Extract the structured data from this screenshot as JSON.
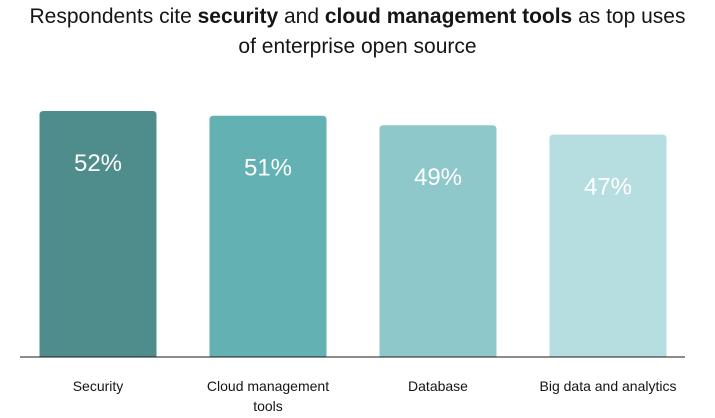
{
  "title": {
    "parts": [
      {
        "text": "Respondents cite ",
        "bold": false
      },
      {
        "text": "security",
        "bold": true
      },
      {
        "text": " and ",
        "bold": false
      },
      {
        "text": "cloud management tools",
        "bold": true
      },
      {
        "text": " as top uses",
        "bold": false
      },
      {
        "text": "\n",
        "bold": false
      },
      {
        "text": "of enterprise open source",
        "bold": false
      }
    ]
  },
  "chart_data": {
    "type": "bar",
    "title": "Respondents cite security and cloud management tools as top uses of enterprise open source",
    "categories": [
      "Security",
      "Cloud management tools",
      "Database",
      "Big data and analytics"
    ],
    "category_lines": [
      [
        "Security"
      ],
      [
        "Cloud management",
        "tools"
      ],
      [
        "Database"
      ],
      [
        "Big data and analytics"
      ]
    ],
    "values": [
      52,
      51,
      49,
      47
    ],
    "value_labels": [
      "52%",
      "51%",
      "49%",
      "47%"
    ],
    "colors": [
      "#4f8d8c",
      "#63b1b3",
      "#8ec8ca",
      "#b6dee0"
    ],
    "unit": "%",
    "xlabel": "",
    "ylabel": "",
    "grid": false,
    "legend": "none"
  }
}
